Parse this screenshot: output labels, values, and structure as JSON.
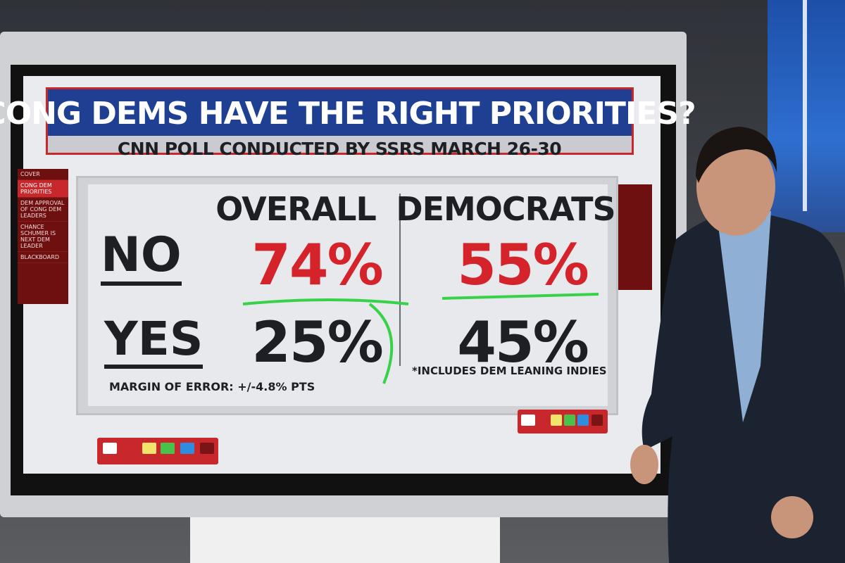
{
  "graphic": {
    "title": "CONG DEMS HAVE THE RIGHT PRIORITIES?",
    "subtitle": "CNN POLL CONDUCTED BY SSRS MARCH 26-30",
    "columns": [
      "OVERALL",
      "DEMOCRATS"
    ],
    "rows": [
      {
        "label": "NO",
        "values": [
          "74%",
          "55%"
        ]
      },
      {
        "label": "YES",
        "values": [
          "25%",
          "45%"
        ]
      }
    ],
    "margin_note": "MARGIN OF ERROR: +/-4.8% PTS",
    "democrats_note": "*INCLUDES DEM LEANING INDIES"
  },
  "menu": [
    "COVER",
    "CONG DEM PRIORITIES",
    "DEM APPROVAL OF CONG DEM LEADERS",
    "CHANCE SCHUMER IS NEXT DEM LEADER",
    "BLACKBOARD"
  ]
}
